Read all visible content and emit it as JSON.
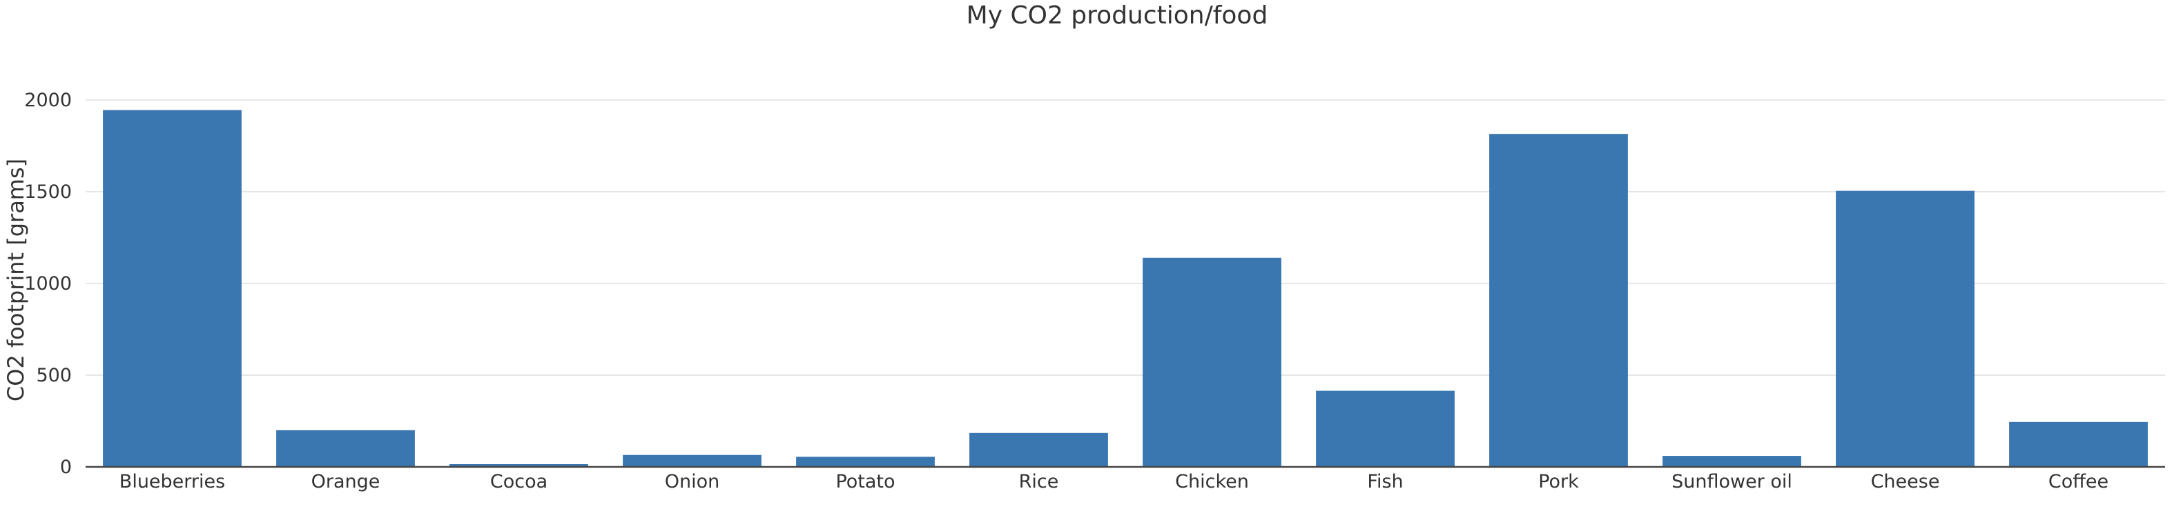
{
  "chart_data": {
    "type": "bar",
    "title": "My CO2 production/food",
    "xlabel": "",
    "ylabel": "CO2 footprint [grams]",
    "categories": [
      "Blueberries",
      "Orange",
      "Cocoa",
      "Onion",
      "Potato",
      "Rice",
      "Chicken",
      "Fish",
      "Pork",
      "Sunflower oil",
      "Cheese",
      "Coffee"
    ],
    "values": [
      1945,
      200,
      15,
      65,
      55,
      185,
      1140,
      415,
      1815,
      60,
      1505,
      245
    ],
    "ylim": [
      0,
      2000
    ],
    "yticks": [
      0,
      500,
      1000,
      1500,
      2000
    ],
    "grid": true,
    "legend": "none",
    "bar_color": "#3a76b0"
  }
}
